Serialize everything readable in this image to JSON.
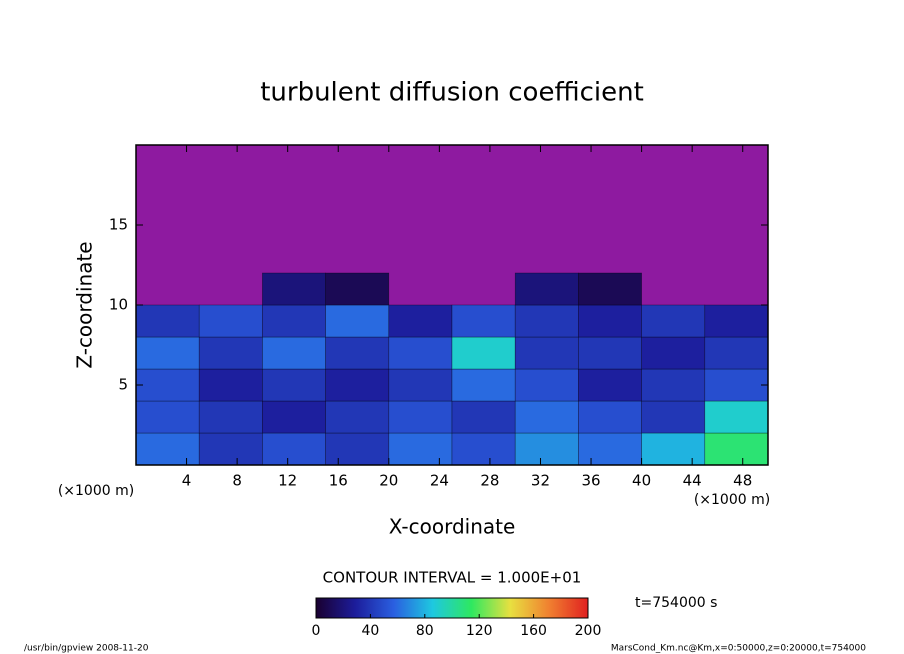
{
  "chart_data": {
    "type": "contour",
    "title": "turbulent diffusion coefficient",
    "xlabel": "X-coordinate",
    "ylabel": "Z-coordinate",
    "xunit": "(×1000 m)",
    "yunit": "(×1000 m)",
    "xlim": [
      0,
      50
    ],
    "ylim": [
      0,
      20
    ],
    "xticks": [
      4,
      8,
      12,
      16,
      20,
      24,
      28,
      32,
      36,
      40,
      44,
      48
    ],
    "yticks": [
      5,
      10,
      15
    ],
    "x": [
      2.5,
      7.5,
      12.5,
      17.5,
      22.5,
      27.5,
      32.5,
      37.5,
      42.5,
      47.5
    ],
    "z": [
      1,
      3,
      5,
      7,
      9,
      11
    ],
    "values": [
      [
        60,
        40,
        50,
        40,
        60,
        50,
        70,
        60,
        80,
        110
      ],
      [
        50,
        40,
        30,
        40,
        50,
        40,
        60,
        50,
        40,
        90
      ],
      [
        50,
        30,
        40,
        30,
        40,
        60,
        50,
        30,
        40,
        50
      ],
      [
        60,
        40,
        60,
        40,
        50,
        90,
        40,
        40,
        30,
        40
      ],
      [
        40,
        50,
        40,
        60,
        30,
        50,
        40,
        30,
        40,
        30
      ],
      [
        null,
        null,
        20,
        10,
        null,
        null,
        20,
        10,
        null,
        null
      ]
    ],
    "background_color": "#8e1aa0",
    "colormap": [
      "#1a0030",
      "#1c1c9a",
      "#2a5fe0",
      "#1ec8e0",
      "#2ee860",
      "#e8e040",
      "#f08030",
      "#e02020"
    ],
    "clim": [
      0,
      200
    ],
    "cticks": [
      0,
      40,
      80,
      120,
      160,
      200
    ],
    "contour_interval": "CONTOUR INTERVAL = 1.000E+01",
    "time_label": "t=754000 s",
    "footer_left": "/usr/bin/gpview  2008-11-20",
    "footer_right": "MarsCond_Km.nc@Km,x=0:50000,z=0:20000,t=754000"
  }
}
